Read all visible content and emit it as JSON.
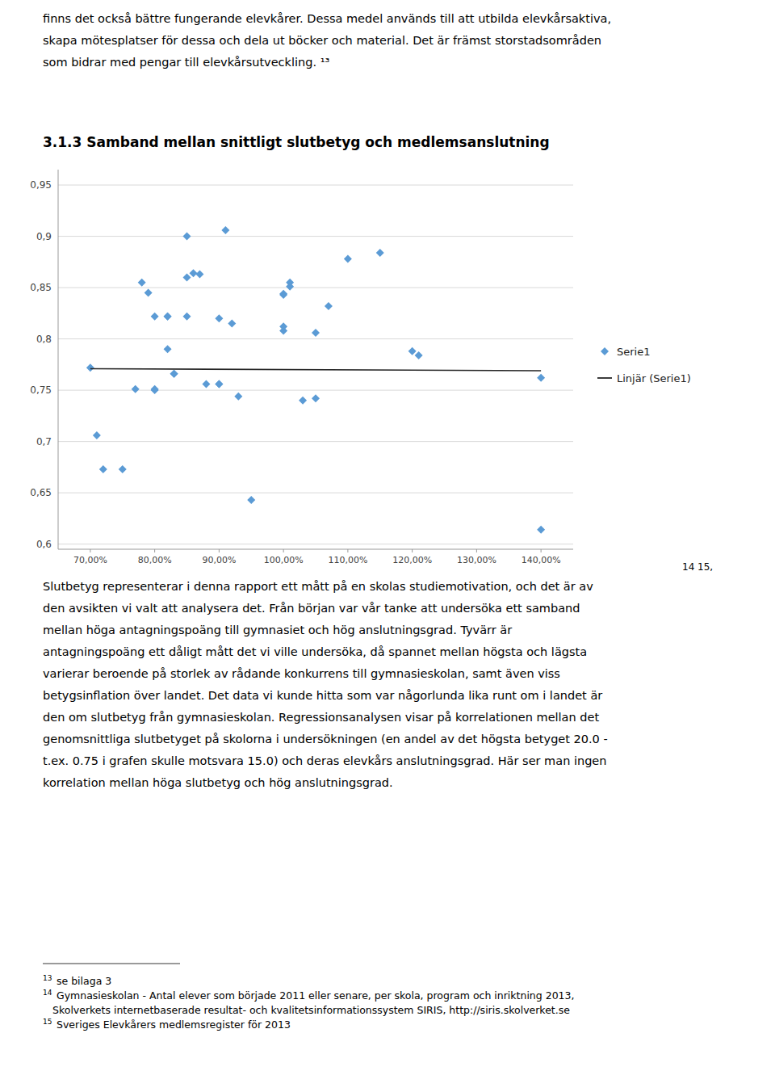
{
  "text_before": [
    "finns det också bättre fungerande elevkårer.  Dessa medel används till att utbilda elevkårsaktiva,",
    "skapa mötesplatser för dessa och dela ut böcker och material. Det är främst storstadsområden",
    "som bidrar med pengar till elevkårsutveckling.  ¹³"
  ],
  "chart_data": {
    "type": "scatter",
    "title": "3.1.3 Samband mellan snittligt slutbetyg och medlemsanslutning",
    "series": [
      {
        "name": "Serie1",
        "color": "#5B9BD5",
        "marker": "diamond",
        "x": [
          70,
          71,
          72,
          75,
          77,
          78,
          79,
          80,
          80,
          80,
          82,
          82,
          82,
          83,
          83,
          85,
          85,
          85,
          86,
          87,
          88,
          90,
          90,
          90,
          91,
          92,
          93,
          95,
          100,
          100,
          100,
          100,
          101,
          101,
          103,
          105,
          105,
          107,
          110,
          115,
          120,
          121,
          140,
          140
        ],
        "values": [
          0.772,
          0.706,
          0.673,
          0.673,
          0.751,
          0.855,
          0.845,
          0.822,
          0.75,
          0.751,
          0.822,
          0.79,
          0.822,
          0.766,
          0.766,
          0.86,
          0.822,
          0.9,
          0.864,
          0.863,
          0.756,
          0.82,
          0.756,
          0.756,
          0.906,
          0.815,
          0.744,
          0.643,
          0.843,
          0.844,
          0.808,
          0.812,
          0.851,
          0.855,
          0.74,
          0.742,
          0.806,
          0.832,
          0.878,
          0.884,
          0.788,
          0.784,
          0.614,
          0.762
        ]
      },
      {
        "name": "Linjär (Serie1)",
        "type": "line",
        "color": "#262626",
        "line_style": "solid",
        "x": [
          70,
          140
        ],
        "values": [
          0.771,
          0.769
        ]
      }
    ],
    "xlim": [
      65,
      145
    ],
    "ylim": [
      0.595,
      0.965
    ],
    "xticks": [
      {
        "value": 70,
        "label": "70,00%"
      },
      {
        "value": 80,
        "label": "80,00%"
      },
      {
        "value": 90,
        "label": "90,00%"
      },
      {
        "value": 100,
        "label": "100,00%"
      },
      {
        "value": 110,
        "label": "110,00%"
      },
      {
        "value": 120,
        "label": "120,00%"
      },
      {
        "value": 130,
        "label": "130,00%"
      },
      {
        "value": 140,
        "label": "140,00%"
      }
    ],
    "yticks": [
      {
        "value": 0.6,
        "label": "0,6"
      },
      {
        "value": 0.65,
        "label": "0,65"
      },
      {
        "value": 0.7,
        "label": "0,7"
      },
      {
        "value": 0.75,
        "label": "0,75"
      },
      {
        "value": 0.8,
        "label": "0,8"
      },
      {
        "value": 0.85,
        "label": "0,85"
      },
      {
        "value": 0.9,
        "label": "0,9"
      },
      {
        "value": 0.95,
        "label": "0,95"
      }
    ],
    "grid": true,
    "legend": "right",
    "annotations": [
      "14 15",
      ","
    ]
  },
  "text_after": [
    "Slutbetyg representerar i denna rapport ett mått på en skolas studiemotivation, och det är av",
    "den avsikten vi valt att analysera det. Från början var vår tanke att undersöka ett samband",
    "mellan höga antagningspoäng till gymnasiet och hög anslutningsgrad. Tyvärr är",
    "antagningspoäng ett dåligt mått det vi ville undersöka, då spannet mellan högsta och lägsta",
    "varierar beroende på storlek av rådande konkurrens till gymnasieskolan, samt även viss",
    "betygsinflation över landet. Det data vi kunde hitta som var någorlunda lika runt om i landet är",
    "den om slutbetyg från gymnasieskolan.  Regressionsanalysen visar på korrelationen mellan det",
    "genomsnittliga slutbetyget på skolorna i undersökningen (en andel av det högsta betyget 20.0 -",
    "t.ex. 0.75 i grafen skulle motsvara 15.0) och deras elevkårs anslutningsgrad. Här ser man ingen",
    "korrelation mellan höga slutbetyg och hög anslutningsgrad."
  ],
  "footnotes": [
    {
      "mark": "13",
      "text": "se bilaga 3"
    },
    {
      "mark": "14",
      "text": "Gymnasieskolan - Antal elever som började 2011 eller senare, per skola, program och inriktning 2013,"
    },
    {
      "text": "Skolverkets internetbaserade resultat- och kvalitetsinformationssystem SIRIS, http://siris.skolverket.se"
    },
    {
      "mark": "15",
      "text": "Sveriges Elevkårers medlemsregister för 2013"
    }
  ]
}
